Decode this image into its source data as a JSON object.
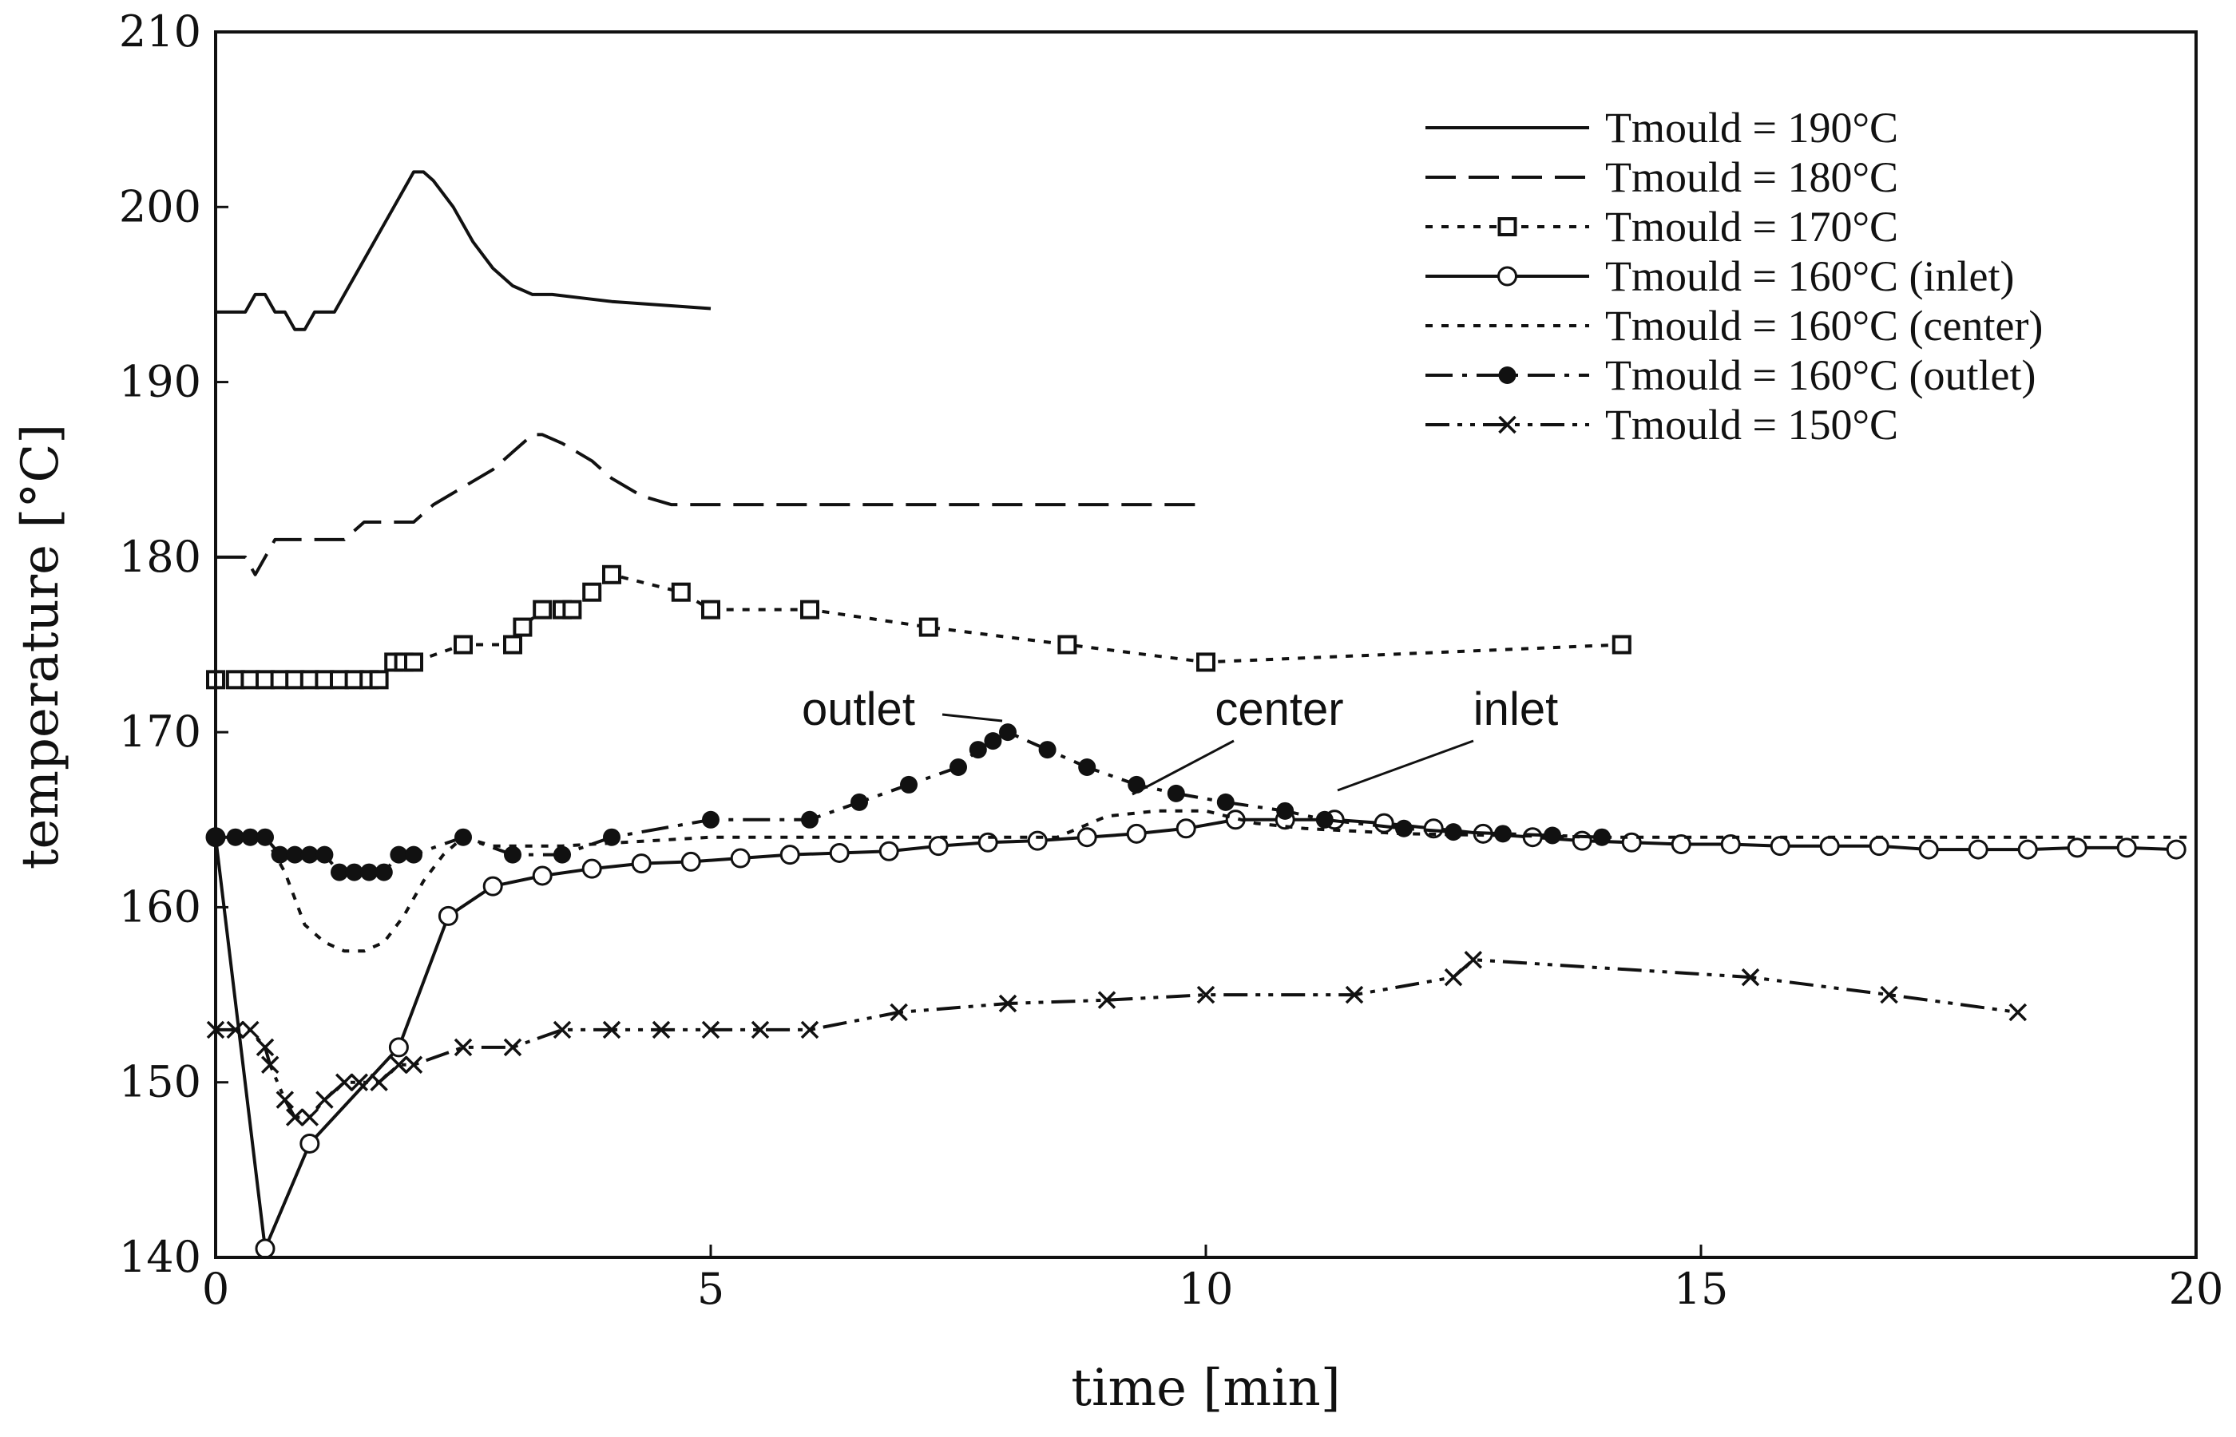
{
  "chart_data": {
    "type": "line",
    "xlabel": "time [min]",
    "ylabel": "temperature [°C]",
    "xlim": [
      0,
      20
    ],
    "ylim": [
      140,
      210
    ],
    "xticks": [
      0,
      5,
      10,
      15,
      20
    ],
    "yticks": [
      140,
      150,
      160,
      170,
      180,
      190,
      200,
      210
    ],
    "grid": false,
    "legend_position": "top-right",
    "series": [
      {
        "name": "Tmould = 190°C",
        "style": "solid",
        "marker": "none",
        "x": [
          0,
          0.3,
          0.4,
          0.5,
          0.6,
          0.7,
          0.8,
          0.9,
          1.0,
          1.1,
          1.2,
          1.3,
          1.5,
          1.7,
          1.9,
          2.0,
          2.1,
          2.2,
          2.4,
          2.6,
          2.8,
          3.0,
          3.2,
          3.4,
          3.7,
          4.0,
          4.5,
          5.0
        ],
        "y": [
          194,
          194,
          195,
          195,
          194,
          194,
          193,
          193,
          194,
          194,
          194,
          195,
          197,
          199,
          201,
          202,
          202,
          201.5,
          200,
          198,
          196.5,
          195.5,
          195,
          195,
          194.8,
          194.6,
          194.4,
          194.2
        ]
      },
      {
        "name": "Tmould = 180°C",
        "style": "dashed",
        "marker": "none",
        "x": [
          0,
          0.2,
          0.3,
          0.4,
          0.5,
          0.6,
          0.7,
          1.0,
          1.3,
          1.5,
          1.6,
          1.8,
          2.0,
          2.2,
          2.5,
          2.8,
          3.0,
          3.2,
          3.3,
          3.5,
          3.8,
          4.0,
          4.3,
          4.6,
          5.0,
          6.0,
          7.0,
          8.0,
          9.0,
          10.0
        ],
        "y": [
          180,
          180,
          180,
          179,
          180,
          181,
          181,
          181,
          181,
          182,
          182,
          182,
          182,
          183,
          184,
          185,
          186,
          187,
          187,
          186.5,
          185.5,
          184.5,
          183.5,
          183,
          183,
          183,
          183,
          183,
          183,
          183
        ]
      },
      {
        "name": "Tmould = 170°C",
        "style": "dotted",
        "marker": "square",
        "x": [
          0,
          0.2,
          0.35,
          0.5,
          0.65,
          0.8,
          0.95,
          1.1,
          1.25,
          1.4,
          1.55,
          1.65,
          1.8,
          1.9,
          2.0,
          2.5,
          3.0,
          3.1,
          3.3,
          3.5,
          3.6,
          3.8,
          4.0,
          4.7,
          5.0,
          6.0,
          7.2,
          8.6,
          10.0,
          14.2
        ],
        "y": [
          173,
          173,
          173,
          173,
          173,
          173,
          173,
          173,
          173,
          173,
          173,
          173,
          174,
          174,
          174,
          175,
          175,
          176,
          177,
          177,
          177,
          178,
          179,
          178,
          177,
          177,
          176,
          175,
          174,
          175
        ]
      },
      {
        "name": "Tmould = 160°C (inlet)",
        "style": "solid",
        "marker": "open-circle",
        "x": [
          0,
          0.5,
          0.95,
          1.85,
          2.35,
          2.8,
          3.3,
          3.8,
          4.3,
          4.8,
          5.3,
          5.8,
          6.3,
          6.8,
          7.3,
          7.8,
          8.3,
          8.8,
          9.3,
          9.8,
          10.3,
          10.8,
          11.3,
          11.8,
          12.3,
          12.8,
          13.3,
          13.8,
          14.3,
          14.8,
          15.3,
          15.8,
          16.3,
          16.8,
          17.3,
          17.8,
          18.3,
          18.8,
          19.3,
          19.8
        ],
        "y": [
          164,
          140.5,
          146.5,
          152,
          159.5,
          161.2,
          161.8,
          162.2,
          162.5,
          162.6,
          162.8,
          163,
          163.1,
          163.2,
          163.5,
          163.7,
          163.8,
          164,
          164.2,
          164.5,
          165,
          165,
          165,
          164.8,
          164.5,
          164.2,
          164,
          163.8,
          163.7,
          163.6,
          163.6,
          163.5,
          163.5,
          163.5,
          163.3,
          163.3,
          163.3,
          163.4,
          163.4,
          163.3
        ]
      },
      {
        "name": "Tmould = 160°C (center)",
        "style": "dotted",
        "marker": "none",
        "x": [
          0,
          0.5,
          0.7,
          0.9,
          1.1,
          1.3,
          1.5,
          1.7,
          1.9,
          2.1,
          2.3,
          2.5,
          2.8,
          3.5,
          5.0,
          7.0,
          8.5,
          9.0,
          9.5,
          10.0,
          10.5,
          11.0,
          12.0,
          14.0,
          16.0,
          18.0,
          20.0
        ],
        "y": [
          164,
          164,
          162,
          159,
          158,
          157.5,
          157.5,
          158,
          159.5,
          161.5,
          163,
          164,
          163.5,
          163.5,
          164,
          164,
          164,
          165.2,
          165.5,
          165.5,
          164.8,
          164.5,
          164.2,
          164,
          164,
          164,
          164
        ]
      },
      {
        "name": "Tmould = 160°C (outlet)",
        "style": "dash-dot",
        "marker": "filled-circle",
        "x": [
          0,
          0.2,
          0.35,
          0.5,
          0.65,
          0.8,
          0.95,
          1.1,
          1.25,
          1.4,
          1.55,
          1.7,
          1.85,
          2.0,
          2.5,
          3.0,
          3.5,
          4.0,
          5.0,
          6.0,
          6.5,
          7.0,
          7.5,
          7.7,
          7.85,
          8.0,
          8.4,
          8.8,
          9.3,
          9.7,
          10.2,
          10.8,
          11.2,
          12.0,
          12.5,
          13.0,
          13.5,
          14.0
        ],
        "y": [
          164,
          164,
          164,
          164,
          163,
          163,
          163,
          163,
          162,
          162,
          162,
          162,
          163,
          163,
          164,
          163,
          163,
          164,
          165,
          165,
          166,
          167,
          168,
          169,
          169.5,
          170,
          169,
          168,
          167,
          166.5,
          166,
          165.5,
          165,
          164.5,
          164.3,
          164.2,
          164.1,
          164
        ]
      },
      {
        "name": "Tmould = 150°C",
        "style": "dash-dot-dot",
        "marker": "cross",
        "x": [
          0,
          0.2,
          0.35,
          0.5,
          0.55,
          0.7,
          0.8,
          0.95,
          1.1,
          1.3,
          1.45,
          1.65,
          1.85,
          2.0,
          2.5,
          3.0,
          3.5,
          4.0,
          4.5,
          5.0,
          5.5,
          6.0,
          6.9,
          8.0,
          9.0,
          10.0,
          11.5,
          12.5,
          12.7,
          15.5,
          16.9,
          18.2
        ],
        "y": [
          153,
          153,
          153,
          152,
          151,
          149,
          148,
          148,
          149,
          150,
          150,
          150,
          151,
          151,
          152,
          152,
          153,
          153,
          153,
          153,
          153,
          153,
          154,
          154.5,
          154.7,
          155,
          155,
          156,
          157,
          156,
          155,
          154
        ]
      }
    ],
    "annotations": [
      "outlet",
      "center",
      "inlet"
    ]
  }
}
